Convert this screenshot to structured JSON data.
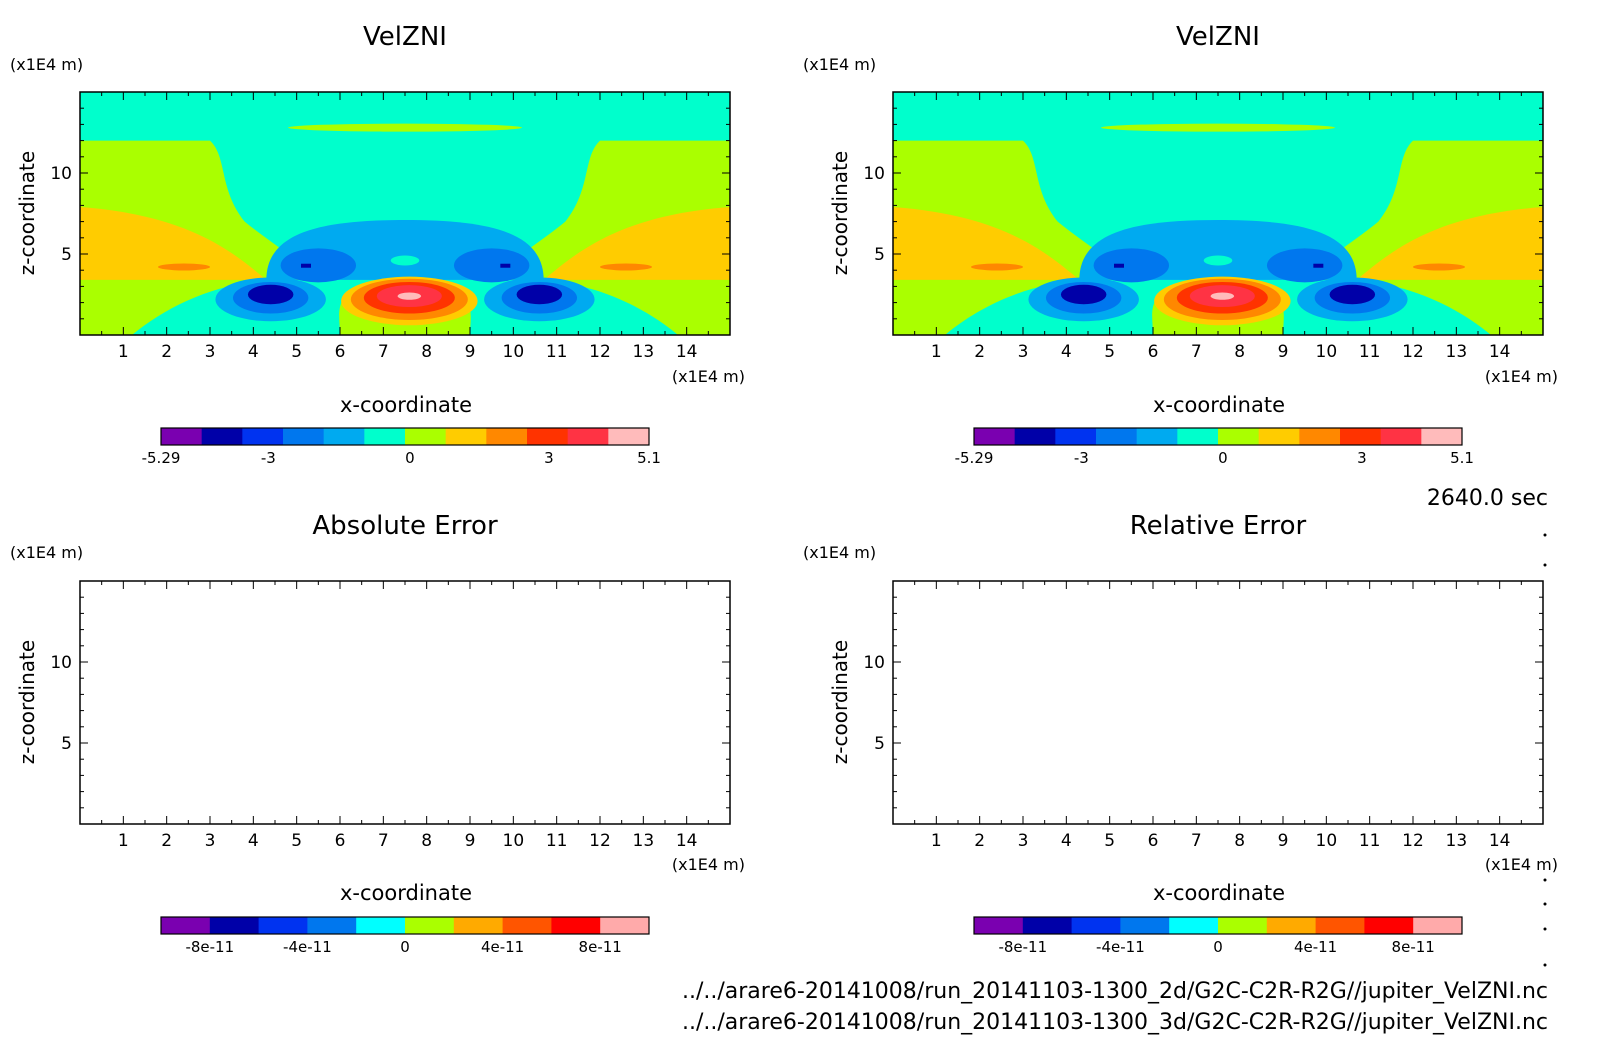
{
  "time_label": "2640.0 sec",
  "files": [
    "../../arare6-20141008/run_20141103-1300_2d/G2C-C2R-R2G//jupiter_VelZNI.nc",
    "../../arare6-20141008/run_20141103-1300_3d/G2C-C2R-R2G//jupiter_VelZNI.nc"
  ],
  "chart_data": [
    {
      "type": "heatmap",
      "title": "VelZNI",
      "xlabel": "x-coordinate",
      "ylabel": "z-coordinate",
      "x_unit": "(x1E4 m)",
      "y_unit": "(x1E4 m)",
      "xlim": [
        0,
        15
      ],
      "ylim": [
        0,
        15
      ],
      "x_ticks": [
        "1",
        "2",
        "3",
        "4",
        "5",
        "6",
        "7",
        "8",
        "9",
        "10",
        "11",
        "12",
        "13",
        "14"
      ],
      "y_ticks": [
        "5",
        "10"
      ],
      "colorbar": {
        "labels": [
          "-5.29",
          "-3",
          "0",
          "3",
          "5.1"
        ],
        "colors": [
          "#7a00b0",
          "#0000a8",
          "#0033f0",
          "#0077ee",
          "#00aaf0",
          "#00ffcc",
          "#aaff00",
          "#ffcc00",
          "#ff8800",
          "#ff3300",
          "#ff3344",
          "#ffbbbb"
        ]
      },
      "fields": {
        "background": "#00ffcc",
        "blue_lobes": "#0077ee",
        "deep_blue": "#0000a8",
        "red_core": "#ff3300",
        "warm_side": "#ffcc00"
      }
    },
    {
      "type": "heatmap",
      "title": "VelZNI",
      "xlabel": "x-coordinate",
      "ylabel": "z-coordinate",
      "x_unit": "(x1E4 m)",
      "y_unit": "(x1E4 m)",
      "xlim": [
        0,
        15
      ],
      "ylim": [
        0,
        15
      ],
      "x_ticks": [
        "1",
        "2",
        "3",
        "4",
        "5",
        "6",
        "7",
        "8",
        "9",
        "10",
        "11",
        "12",
        "13",
        "14"
      ],
      "y_ticks": [
        "5",
        "10"
      ],
      "colorbar": {
        "labels": [
          "-5.29",
          "-3",
          "0",
          "3",
          "5.1"
        ],
        "colors": [
          "#7a00b0",
          "#0000a8",
          "#0033f0",
          "#0077ee",
          "#00aaf0",
          "#00ffcc",
          "#aaff00",
          "#ffcc00",
          "#ff8800",
          "#ff3300",
          "#ff3344",
          "#ffbbbb"
        ]
      }
    },
    {
      "type": "heatmap",
      "title": "Absolute Error",
      "xlabel": "x-coordinate",
      "ylabel": "z-coordinate",
      "x_unit": "(x1E4 m)",
      "y_unit": "(x1E4 m)",
      "xlim": [
        0,
        15
      ],
      "ylim": [
        0,
        15
      ],
      "x_ticks": [
        "1",
        "2",
        "3",
        "4",
        "5",
        "6",
        "7",
        "8",
        "9",
        "10",
        "11",
        "12",
        "13",
        "14"
      ],
      "y_ticks": [
        "5",
        "10"
      ],
      "colorbar": {
        "labels": [
          "-8e-11",
          "-4e-11",
          "0",
          "4e-11",
          "8e-11"
        ],
        "colors": [
          "#7a00b0",
          "#0000a8",
          "#0033f0",
          "#0077ee",
          "#00ffff",
          "#aaff00",
          "#ffaa00",
          "#ff5500",
          "#ff0000",
          "#ffaaaa"
        ]
      }
    },
    {
      "type": "heatmap",
      "title": "Relative Error",
      "xlabel": "x-coordinate",
      "ylabel": "z-coordinate",
      "x_unit": "(x1E4 m)",
      "y_unit": "(x1E4 m)",
      "xlim": [
        0,
        15
      ],
      "ylim": [
        0,
        15
      ],
      "x_ticks": [
        "1",
        "2",
        "3",
        "4",
        "5",
        "6",
        "7",
        "8",
        "9",
        "10",
        "11",
        "12",
        "13",
        "14"
      ],
      "y_ticks": [
        "5",
        "10"
      ],
      "colorbar": {
        "labels": [
          "-8e-11",
          "-4e-11",
          "0",
          "4e-11",
          "8e-11"
        ],
        "colors": [
          "#7a00b0",
          "#0000a8",
          "#0033f0",
          "#0077ee",
          "#00ffff",
          "#aaff00",
          "#ffaa00",
          "#ff5500",
          "#ff0000",
          "#ffaaaa"
        ]
      }
    }
  ]
}
